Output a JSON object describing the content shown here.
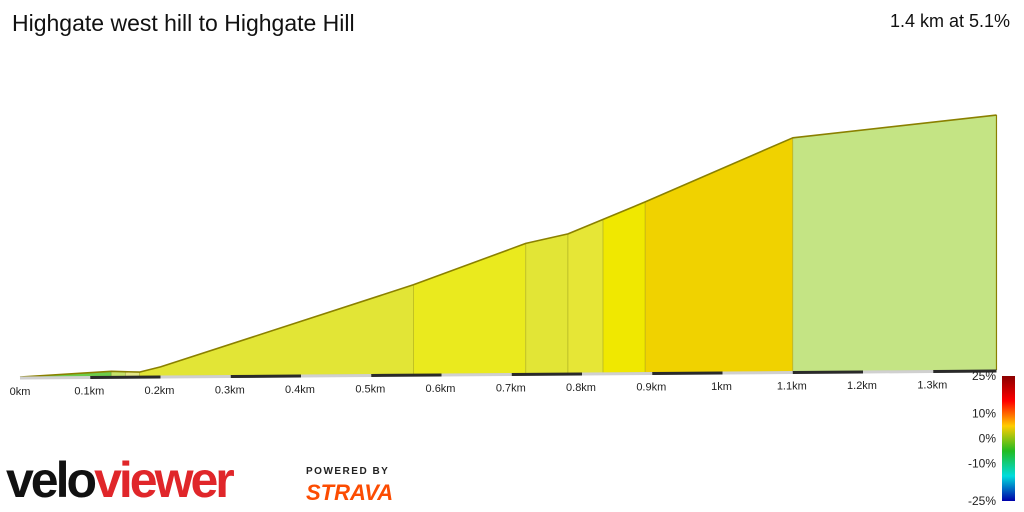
{
  "header": {
    "title": "Highgate west hill to Highgate Hill",
    "summary": "1.4 km at 5.1%"
  },
  "chart_data": {
    "type": "area",
    "title": "Highgate west hill to Highgate Hill",
    "xlabel": "",
    "ylabel": "",
    "xlim": [
      0,
      1.4
    ],
    "x_ticks": [
      "0km",
      "0.1km",
      "0.2km",
      "0.3km",
      "0.4km",
      "0.5km",
      "0.6km",
      "0.7km",
      "0.8km",
      "0.9km",
      "1km",
      "1.1km",
      "1.2km",
      "1.3km"
    ],
    "profile": {
      "x": [
        0.0,
        0.13,
        0.17,
        0.2,
        0.56,
        0.72,
        0.78,
        0.83,
        0.89,
        1.1,
        1.39
      ],
      "elevation": [
        0.0,
        5.0,
        4.0,
        9.0,
        88.0,
        128.0,
        137.0,
        151.0,
        168.0,
        230.0,
        251.0
      ]
    },
    "segments": [
      {
        "from": 0.0,
        "to": 0.13,
        "color": "#6ccc4a"
      },
      {
        "from": 0.13,
        "to": 0.15,
        "color": "#c4e36a"
      },
      {
        "from": 0.15,
        "to": 0.17,
        "color": "#e4e888"
      },
      {
        "from": 0.17,
        "to": 0.56,
        "color": "#e2e536"
      },
      {
        "from": 0.56,
        "to": 0.72,
        "color": "#eaea1e"
      },
      {
        "from": 0.72,
        "to": 0.78,
        "color": "#e2e536"
      },
      {
        "from": 0.78,
        "to": 0.83,
        "color": "#e6e636"
      },
      {
        "from": 0.83,
        "to": 0.89,
        "color": "#f0e800"
      },
      {
        "from": 0.89,
        "to": 1.1,
        "color": "#f0d200"
      },
      {
        "from": 1.1,
        "to": 1.39,
        "color": "#c4e484"
      }
    ],
    "gradient_legend": {
      "labels": [
        "25%",
        "10%",
        "0%",
        "-10%",
        "-25%"
      ],
      "values": [
        25,
        10,
        0,
        -10,
        -25
      ],
      "colors": [
        "#8a0000",
        "#ff0000",
        "#ffcc00",
        "#22bb22",
        "#00dddd",
        "#0000aa"
      ]
    }
  },
  "branding": {
    "logo_velo": "velo",
    "logo_viewer": "viewer",
    "powered_by": "POWERED BY",
    "strava": "STRAVA"
  }
}
